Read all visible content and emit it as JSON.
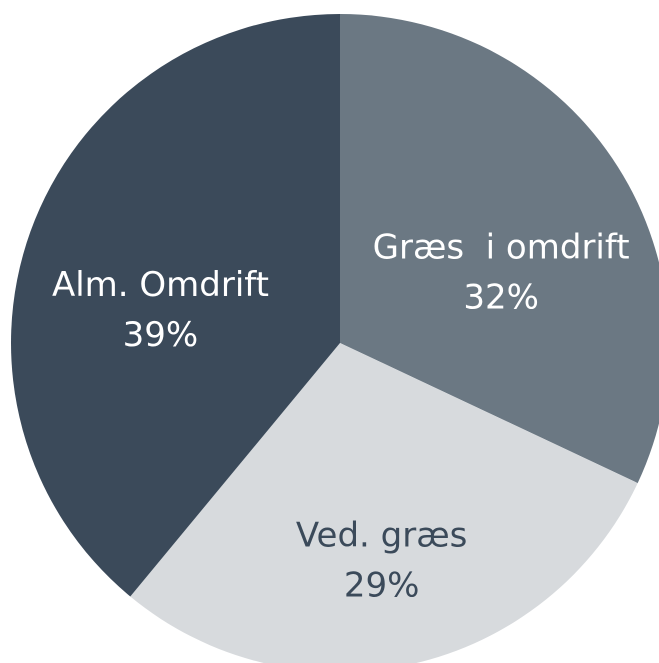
{
  "chart_data": {
    "type": "pie",
    "categories": [
      "Græs  i omdrift",
      "Ved. græs",
      "Alm. Omdrift"
    ],
    "values": [
      32,
      29,
      39
    ],
    "value_labels": [
      "32%",
      "29%",
      "39%"
    ],
    "colors": [
      "#6b7883",
      "#d7dadd",
      "#3b4a5a"
    ]
  }
}
